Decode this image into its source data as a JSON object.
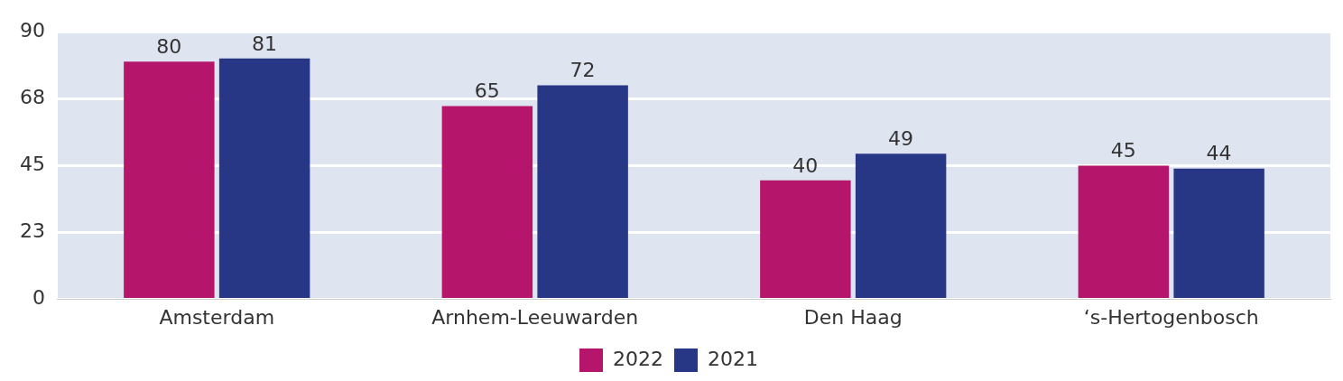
{
  "chart_data": {
    "type": "bar",
    "categories": [
      "Amsterdam",
      "Arnhem-Leeuwarden",
      "Den Haag",
      "‘s-Hertogenbosch"
    ],
    "series": [
      {
        "name": "2022",
        "color": "#b5166b",
        "values": [
          80,
          65,
          40,
          45
        ]
      },
      {
        "name": "2021",
        "color": "#283785",
        "values": [
          81,
          72,
          49,
          44
        ]
      }
    ],
    "ylim": [
      0,
      90
    ],
    "yticks": [
      0,
      {
        "value": 22.5,
        "label": "23"
      },
      45,
      {
        "value": 67.5,
        "label": "68"
      },
      90
    ],
    "grid": "y",
    "legend": "bottom",
    "data_labels": true
  }
}
